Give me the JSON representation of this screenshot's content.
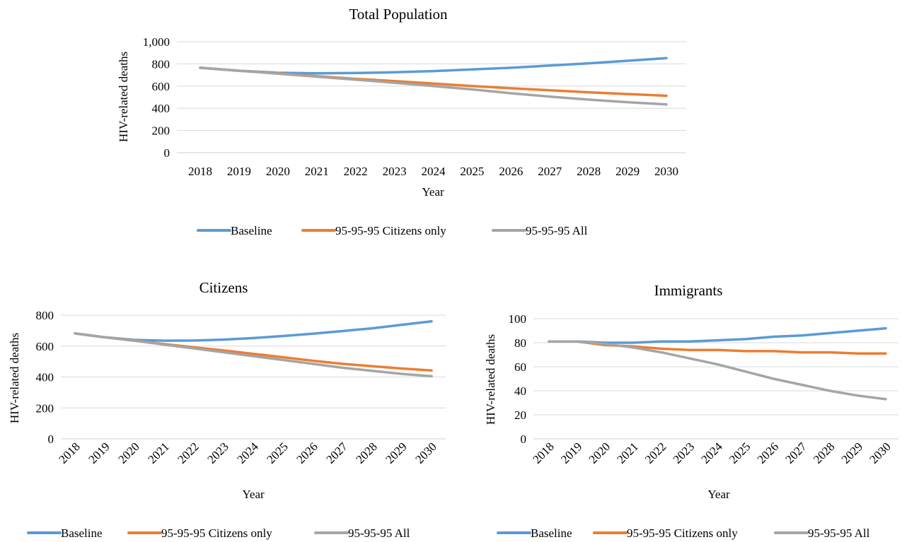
{
  "chart_data": [
    {
      "type": "line",
      "title": "Total Population",
      "xlabel": "Year",
      "ylabel": "HIV-related deaths",
      "ylim": [
        0,
        1000
      ],
      "yticks": [
        "0",
        "200",
        "400",
        "600",
        "800",
        "1,000"
      ],
      "categories": [
        "2018",
        "2019",
        "2020",
        "2021",
        "2022",
        "2023",
        "2024",
        "2025",
        "2026",
        "2027",
        "2028",
        "2029",
        "2030"
      ],
      "grid": true,
      "legend_position": "bottom",
      "series": [
        {
          "name": "Baseline",
          "color": "#5b9bd5",
          "values": [
            765,
            738,
            720,
            715,
            718,
            725,
            735,
            750,
            765,
            785,
            805,
            828,
            852
          ]
        },
        {
          "name": "95-95-95 Citizens only",
          "color": "#ed7d31",
          "values": [
            765,
            738,
            715,
            690,
            665,
            645,
            622,
            600,
            580,
            562,
            544,
            528,
            513
          ]
        },
        {
          "name": "95-95-95 All",
          "color": "#a5a5a5",
          "values": [
            765,
            738,
            712,
            685,
            658,
            630,
            600,
            570,
            535,
            505,
            478,
            455,
            435
          ]
        }
      ]
    },
    {
      "type": "line",
      "title": "Citizens",
      "xlabel": "Year",
      "ylabel": "HIV-related deaths",
      "ylim": [
        0,
        800
      ],
      "yticks": [
        "0",
        "200",
        "400",
        "600",
        "800"
      ],
      "categories": [
        "2018",
        "2019",
        "2020",
        "2021",
        "2022",
        "2023",
        "2024",
        "2025",
        "2026",
        "2027",
        "2028",
        "2029",
        "2030"
      ],
      "grid": true,
      "legend_position": "bottom",
      "series": [
        {
          "name": "Baseline",
          "color": "#5b9bd5",
          "values": [
            682,
            657,
            640,
            635,
            636,
            642,
            652,
            665,
            680,
            697,
            715,
            738,
            760
          ]
        },
        {
          "name": "95-95-95 Citizens only",
          "color": "#ed7d31",
          "values": [
            682,
            657,
            635,
            613,
            592,
            572,
            550,
            528,
            505,
            485,
            470,
            455,
            442
          ]
        },
        {
          "name": "95-95-95 All",
          "color": "#a5a5a5",
          "values": [
            682,
            657,
            635,
            610,
            585,
            560,
            535,
            510,
            485,
            460,
            440,
            420,
            405
          ]
        }
      ]
    },
    {
      "type": "line",
      "title": "Immigrants",
      "xlabel": "Year",
      "ylabel": "HIV-related deaths",
      "ylim": [
        0,
        100
      ],
      "yticks": [
        "0",
        "20",
        "40",
        "60",
        "80",
        "100"
      ],
      "categories": [
        "2018",
        "2019",
        "2020",
        "2021",
        "2022",
        "2023",
        "2024",
        "2025",
        "2026",
        "2027",
        "2028",
        "2029",
        "2030"
      ],
      "grid": true,
      "legend_position": "bottom",
      "series": [
        {
          "name": "Baseline",
          "color": "#5b9bd5",
          "values": [
            81,
            81,
            80,
            80,
            81,
            81,
            82,
            83,
            85,
            86,
            88,
            90,
            92
          ]
        },
        {
          "name": "95-95-95 Citizens only",
          "color": "#ed7d31",
          "values": [
            81,
            81,
            78,
            77,
            75,
            74,
            74,
            73,
            73,
            72,
            72,
            71,
            71
          ]
        },
        {
          "name": "95-95-95 All",
          "color": "#a5a5a5",
          "values": [
            81,
            81,
            79,
            76,
            72,
            67,
            62,
            56,
            50,
            45,
            40,
            36,
            33
          ]
        }
      ]
    }
  ]
}
